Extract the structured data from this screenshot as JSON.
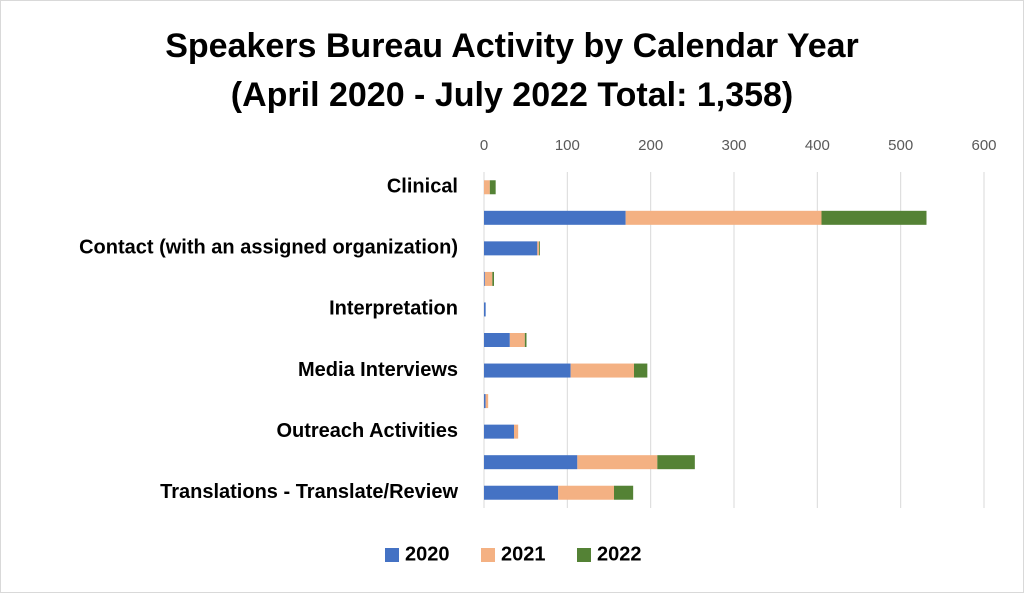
{
  "chart_data": {
    "type": "stacked-bar-horizontal",
    "title": "Speakers Bureau Activity by Calendar Year",
    "subtitle": "(April 2020 - July 2022 Total: 1,358)",
    "categories": [
      "Clinical",
      null,
      "Contact (with an assigned organization)",
      null,
      "Interpretation",
      null,
      "Media Interviews",
      null,
      "Outreach Activities",
      null,
      "Translations - Translate/Review"
    ],
    "series": [
      {
        "name": "2020",
        "color": "#4472c4",
        "values": [
          0,
          170,
          64,
          1,
          2,
          31,
          104,
          2,
          36,
          112,
          89
        ]
      },
      {
        "name": "2021",
        "color": "#f4b183",
        "values": [
          7,
          235,
          2,
          9,
          0,
          18,
          76,
          3,
          5,
          96,
          67
        ]
      },
      {
        "name": "2022",
        "color": "#548235",
        "values": [
          7,
          126,
          1,
          2,
          0,
          2,
          16,
          0,
          0,
          45,
          23
        ]
      }
    ],
    "xlim": [
      0,
      600
    ],
    "xticks": [
      0,
      100,
      200,
      300,
      400,
      500,
      600
    ],
    "grid": true,
    "legend": "bottom"
  }
}
